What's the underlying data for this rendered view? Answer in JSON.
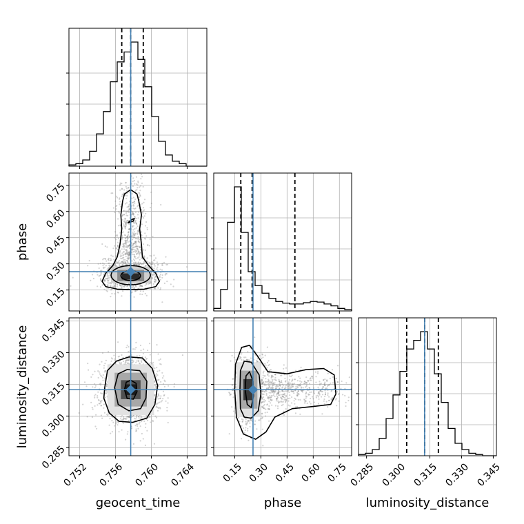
{
  "chart_data": {
    "type": "corner",
    "parameters": [
      "geocent_time",
      "phase",
      "luminosity_distance"
    ],
    "truths": {
      "geocent_time": 0.7577,
      "phase": 0.255,
      "luminosity_distance": 0.3125
    },
    "quantiles": {
      "geocent_time": [
        0.7567,
        0.7577,
        0.7591
      ],
      "phase": [
        0.185,
        0.25,
        0.495
      ],
      "luminosity_distance": [
        0.304,
        0.3125,
        0.319
      ]
    },
    "ranges": {
      "geocent_time": [
        0.7508,
        0.7662
      ],
      "phase": [
        0.03,
        0.82
      ],
      "luminosity_distance": [
        0.2812,
        0.3465
      ]
    },
    "ticks": {
      "geocent_time": {
        "values": [
          0.752,
          0.756,
          0.76,
          0.764
        ],
        "labels": [
          "0.752",
          "0.756",
          "0.760",
          "0.764"
        ]
      },
      "phase": {
        "values": [
          0.15,
          0.3,
          0.45,
          0.6,
          0.75
        ],
        "labels": [
          "0.15",
          "0.30",
          "0.45",
          "0.60",
          "0.75"
        ]
      },
      "luminosity_distance": {
        "values": [
          0.285,
          0.3,
          0.315,
          0.33,
          0.345
        ],
        "labels": [
          "0.285",
          "0.300",
          "0.315",
          "0.330",
          "0.345"
        ]
      }
    },
    "histograms": {
      "geocent_time": {
        "bins": [
          0.7508,
          0.7662
        ],
        "counts": [
          0.01,
          0.02,
          0.05,
          0.12,
          0.26,
          0.44,
          0.68,
          0.84,
          0.92,
          1.0,
          0.86,
          0.64,
          0.4,
          0.2,
          0.09,
          0.04,
          0.02,
          0.0,
          0.0,
          0.0
        ]
      },
      "phase": {
        "bins": [
          0.03,
          0.82
        ],
        "counts": [
          0.02,
          0.17,
          0.7,
          0.98,
          0.62,
          0.31,
          0.2,
          0.14,
          0.1,
          0.075,
          0.062,
          0.055,
          0.055,
          0.065,
          0.075,
          0.07,
          0.055,
          0.04,
          0.02,
          0.01
        ]
      },
      "luminosity_distance": {
        "bins": [
          0.2812,
          0.3465
        ],
        "counts": [
          0.01,
          0.02,
          0.05,
          0.14,
          0.3,
          0.49,
          0.68,
          0.86,
          0.93,
          1.0,
          0.86,
          0.66,
          0.43,
          0.22,
          0.1,
          0.05,
          0.02,
          0.01,
          0.0,
          0.0
        ]
      }
    },
    "xlabel_row": [
      "geocent_time",
      "phase",
      "luminosity_distance"
    ],
    "ylabel_col": [
      "",
      "phase",
      "luminosity_distance"
    ],
    "grid": true,
    "scatter_color": "#808080",
    "truth_color": "#4682b4",
    "contour_color": "#000000"
  }
}
